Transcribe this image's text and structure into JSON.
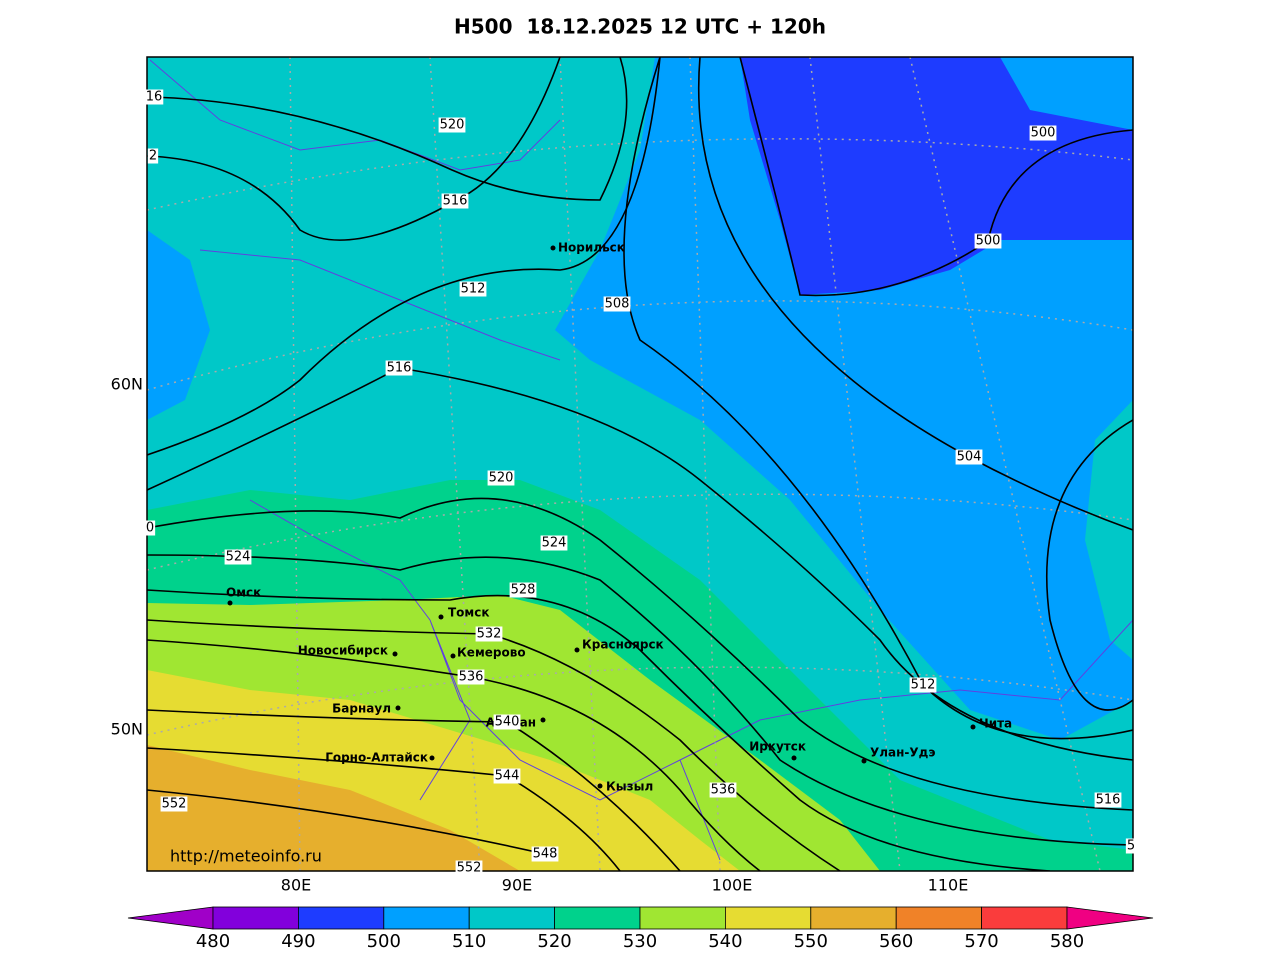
{
  "title": "H500  18.12.2025 12 UTC + 120h",
  "url": "http://meteoinfo.ru",
  "lon_labels": [
    "80E",
    "90E",
    "100E",
    "110E"
  ],
  "lat_labels": [
    "60N",
    "50N"
  ],
  "cities": [
    "Норильск",
    "Омск",
    "Томск",
    "Новосибирск",
    "Кемерово",
    "Красноярск",
    "Барнаул",
    "Абакан",
    "Горно-Алтайск",
    "Кызыл",
    "Иркутск",
    "Улан-Удэ",
    "Чита"
  ],
  "contour_labels": [
    "520",
    "516",
    "512",
    "508",
    "516",
    "520",
    "524",
    "524",
    "528",
    "532",
    "536",
    "540",
    "544",
    "548",
    "552",
    "536",
    "512",
    "504",
    "500",
    "500",
    "516",
    "552",
    "16",
    "2",
    "0",
    "5"
  ],
  "colorbar": {
    "levels": [
      480,
      490,
      500,
      510,
      520,
      530,
      540,
      550,
      560,
      570,
      580
    ],
    "colors": [
      "#a000c8",
      "#8200dc",
      "#1e3cff",
      "#00a0ff",
      "#00c8c8",
      "#00d28c",
      "#a0e632",
      "#e6dc32",
      "#e6af2d",
      "#f08228",
      "#fa3c3c",
      "#f00082"
    ]
  }
}
